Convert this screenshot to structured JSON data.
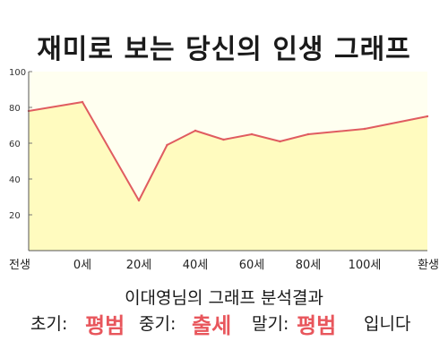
{
  "title": "재미로 보는 당신의 인생 그래프",
  "chart_data": {
    "type": "area",
    "x_categories": [
      "전생",
      "0세",
      "20세",
      "40세",
      "60세",
      "80세",
      "100세",
      "환생"
    ],
    "points": [
      {
        "x": "전생",
        "y": 78
      },
      {
        "x": "0세",
        "y": 83
      },
      {
        "x": "20세",
        "y": 28
      },
      {
        "x": "30세",
        "y": 59
      },
      {
        "x": "40세",
        "y": 67
      },
      {
        "x": "50세",
        "y": 62
      },
      {
        "x": "60세",
        "y": 65
      },
      {
        "x": "70세",
        "y": 61
      },
      {
        "x": "80세",
        "y": 65
      },
      {
        "x": "100세",
        "y": 68
      },
      {
        "x": "환생",
        "y": 75
      }
    ],
    "y_ticks": [
      20,
      40,
      60,
      80,
      100
    ],
    "ylim": [
      0,
      100
    ],
    "grid": false,
    "line_color": "#e05c60",
    "fill_color": "#fffbbf",
    "plot_bg": "#fffff0"
  },
  "summary": {
    "subtitle": "이대영님의 그래프 분석결과",
    "early_label": "초기:",
    "early_value": "평범",
    "mid_label": "중기:",
    "mid_value": "출세",
    "late_label": "말기:",
    "late_value": "평범",
    "ending": "입니다",
    "accent_color": "#e8565c"
  }
}
